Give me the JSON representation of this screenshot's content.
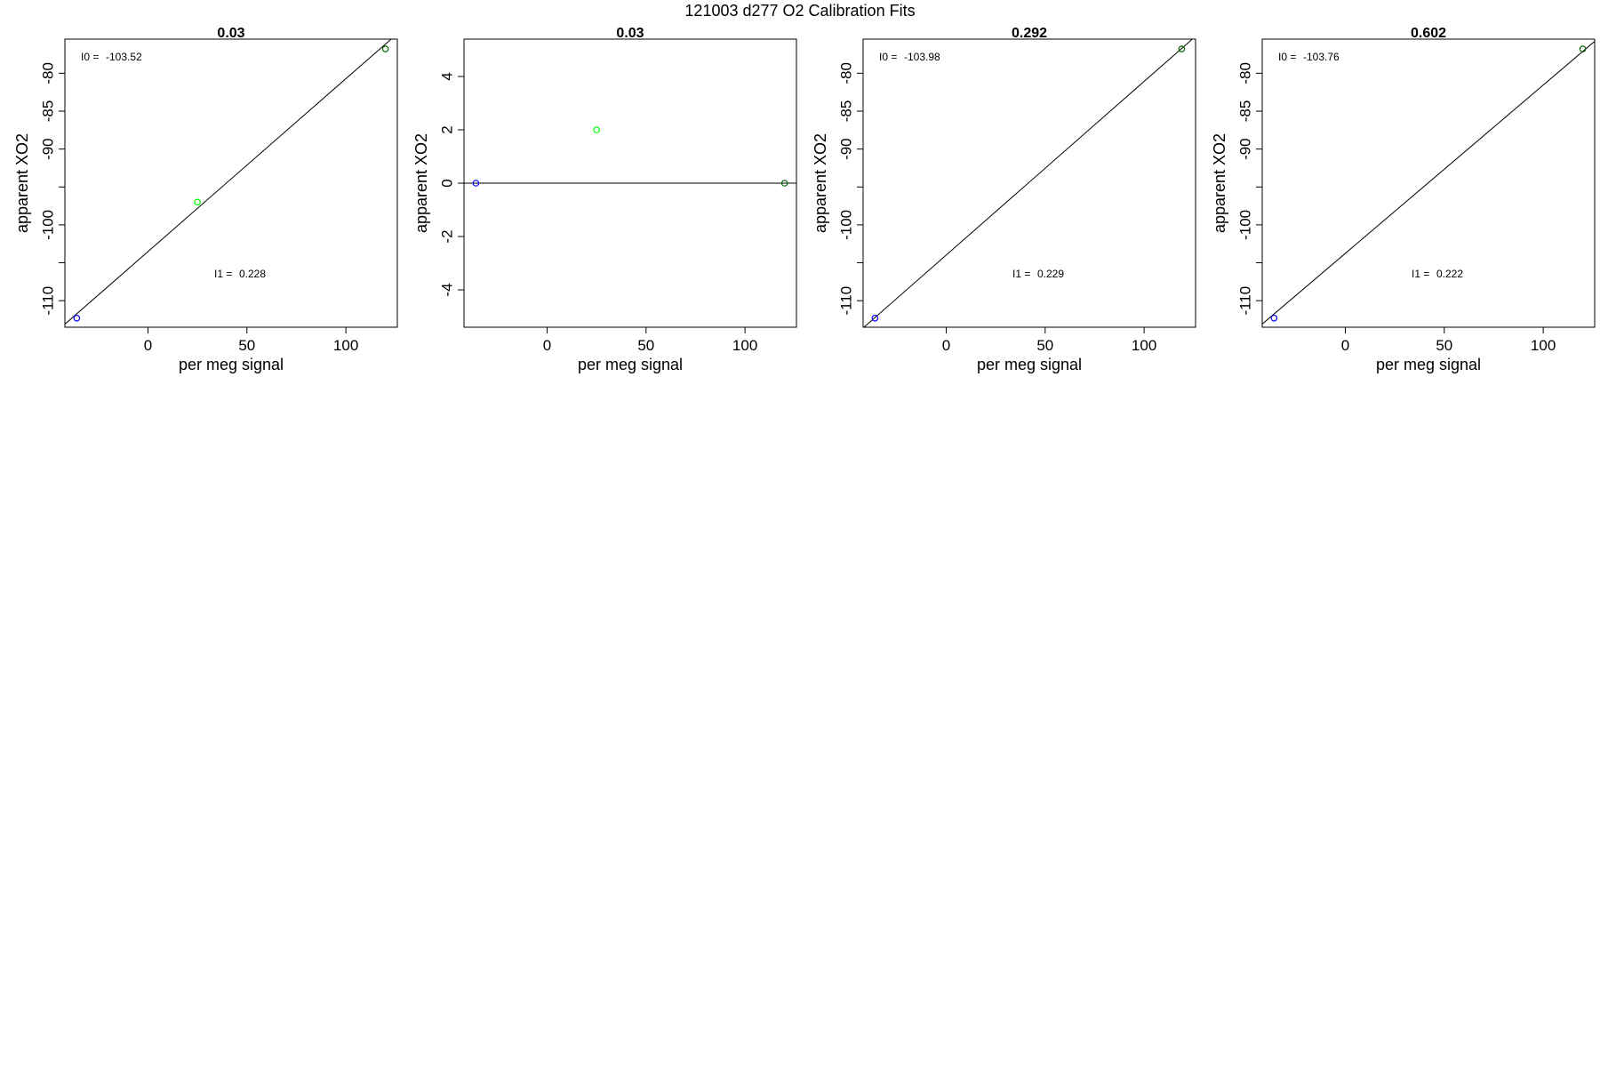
{
  "figure": {
    "title": "121003   d277   O2 Calibration Fits"
  },
  "chart_data": [
    {
      "type": "scatter",
      "title": "0.03",
      "xlabel": "per meg signal",
      "ylabel": "apparent XO2",
      "xlim": [
        -42,
        126
      ],
      "ylim": [
        -113.5,
        -75.5
      ],
      "x_ticks": [
        0,
        50,
        100
      ],
      "y_ticks": [
        -80,
        -85,
        -90,
        -95,
        -100,
        -105,
        -110
      ],
      "y_tick_labels": [
        "-80",
        "-85",
        "-90",
        "",
        "-100",
        "",
        "-110"
      ],
      "grid": false,
      "points": [
        {
          "x": -36,
          "y": -112.3,
          "color": "#0000ff"
        },
        {
          "x": 25,
          "y": -97.0,
          "color": "#00ff00"
        },
        {
          "x": 120,
          "y": -76.8,
          "color": "#006400"
        }
      ],
      "fit_line": {
        "intercept": -103.52,
        "slope": 0.228
      },
      "annotations": [
        {
          "label": "I0 = ",
          "value": "-103.52",
          "position": "top-left"
        },
        {
          "label": "I1 = ",
          "value": "0.228",
          "position": "lower-middle"
        }
      ]
    },
    {
      "type": "scatter",
      "title": "0.03",
      "xlabel": "per meg signal",
      "ylabel": "apparent XO2",
      "xlim": [
        -42,
        126
      ],
      "ylim": [
        -5.4,
        5.4
      ],
      "x_ticks": [
        0,
        50,
        100
      ],
      "y_ticks": [
        4,
        2,
        0,
        -2,
        -4
      ],
      "y_tick_labels": [
        "4",
        "2",
        "0",
        "-2",
        "-4"
      ],
      "grid": false,
      "points": [
        {
          "x": -36,
          "y": 0,
          "color": "#0000ff"
        },
        {
          "x": 25,
          "y": 2,
          "color": "#00ff00"
        },
        {
          "x": 120,
          "y": 0,
          "color": "#006400"
        }
      ],
      "fit_line": {
        "intercept": 0,
        "slope": 0
      },
      "annotations": []
    },
    {
      "type": "scatter",
      "title": "0.292",
      "xlabel": "per meg signal",
      "ylabel": "apparent XO2",
      "xlim": [
        -42,
        126
      ],
      "ylim": [
        -113.5,
        -75.5
      ],
      "x_ticks": [
        0,
        50,
        100
      ],
      "y_ticks": [
        -80,
        -85,
        -90,
        -95,
        -100,
        -105,
        -110
      ],
      "y_tick_labels": [
        "-80",
        "-85",
        "-90",
        "",
        "-100",
        "",
        "-110"
      ],
      "grid": false,
      "points": [
        {
          "x": -36,
          "y": -112.3,
          "color": "#0000ff"
        },
        {
          "x": 119,
          "y": -76.8,
          "color": "#006400"
        }
      ],
      "fit_line": {
        "intercept": -103.98,
        "slope": 0.229
      },
      "annotations": [
        {
          "label": "I0 = ",
          "value": "-103.98",
          "position": "top-left"
        },
        {
          "label": "I1 = ",
          "value": "0.229",
          "position": "lower-middle"
        }
      ]
    },
    {
      "type": "scatter",
      "title": "0.602",
      "xlabel": "per meg signal",
      "ylabel": "apparent XO2",
      "xlim": [
        -42,
        126
      ],
      "ylim": [
        -113.5,
        -75.5
      ],
      "x_ticks": [
        0,
        50,
        100
      ],
      "y_ticks": [
        -80,
        -85,
        -90,
        -95,
        -100,
        -105,
        -110
      ],
      "y_tick_labels": [
        "-80",
        "-85",
        "-90",
        "",
        "-100",
        "",
        "-110"
      ],
      "grid": false,
      "points": [
        {
          "x": -36,
          "y": -112.3,
          "color": "#0000ff"
        },
        {
          "x": 120,
          "y": -76.8,
          "color": "#006400"
        }
      ],
      "fit_line": {
        "intercept": -103.76,
        "slope": 0.222
      },
      "annotations": [
        {
          "label": "I0 = ",
          "value": "-103.76",
          "position": "top-left"
        },
        {
          "label": "I1 = ",
          "value": "0.222",
          "position": "lower-middle"
        }
      ]
    }
  ]
}
